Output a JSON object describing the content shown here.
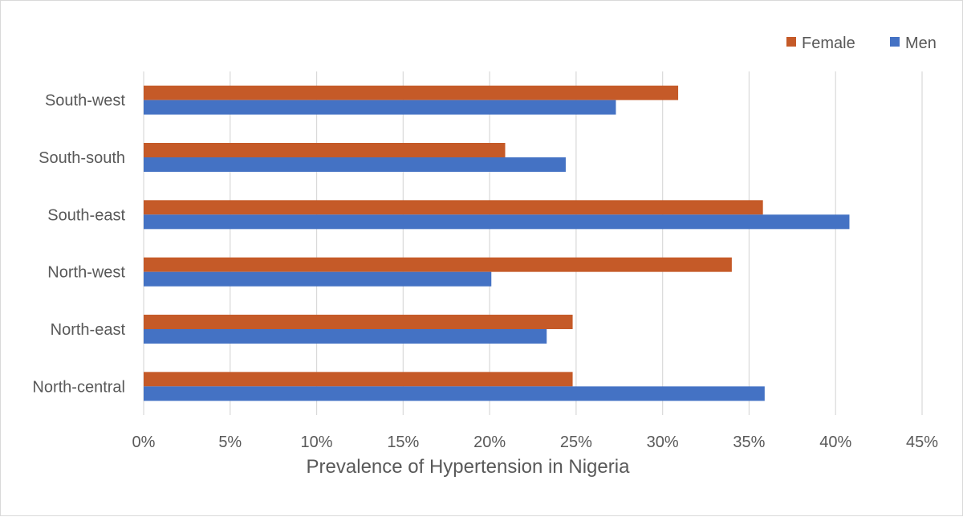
{
  "chart_data": {
    "type": "bar",
    "orientation": "horizontal",
    "title": "",
    "xlabel": "Prevalence of Hypertension in Nigeria",
    "ylabel": "",
    "categories": [
      "South-west",
      "South-south",
      "South-east",
      "North-west",
      "North-east",
      "North-central"
    ],
    "series": [
      {
        "name": "Female",
        "color": "#c55a28",
        "values": [
          30.9,
          20.9,
          35.8,
          34.0,
          24.8,
          24.8
        ]
      },
      {
        "name": "Men",
        "color": "#4472c4",
        "values": [
          27.3,
          24.4,
          40.8,
          20.1,
          23.3,
          35.9
        ]
      }
    ],
    "xlim": [
      0,
      45
    ],
    "xticks": [
      0,
      5,
      10,
      15,
      20,
      25,
      30,
      35,
      40,
      45
    ],
    "xtick_labels": [
      "0%",
      "5%",
      "10%",
      "15%",
      "20%",
      "25%",
      "30%",
      "35%",
      "40%",
      "45%"
    ],
    "grid": "vertical",
    "legend_position": "top-right"
  }
}
